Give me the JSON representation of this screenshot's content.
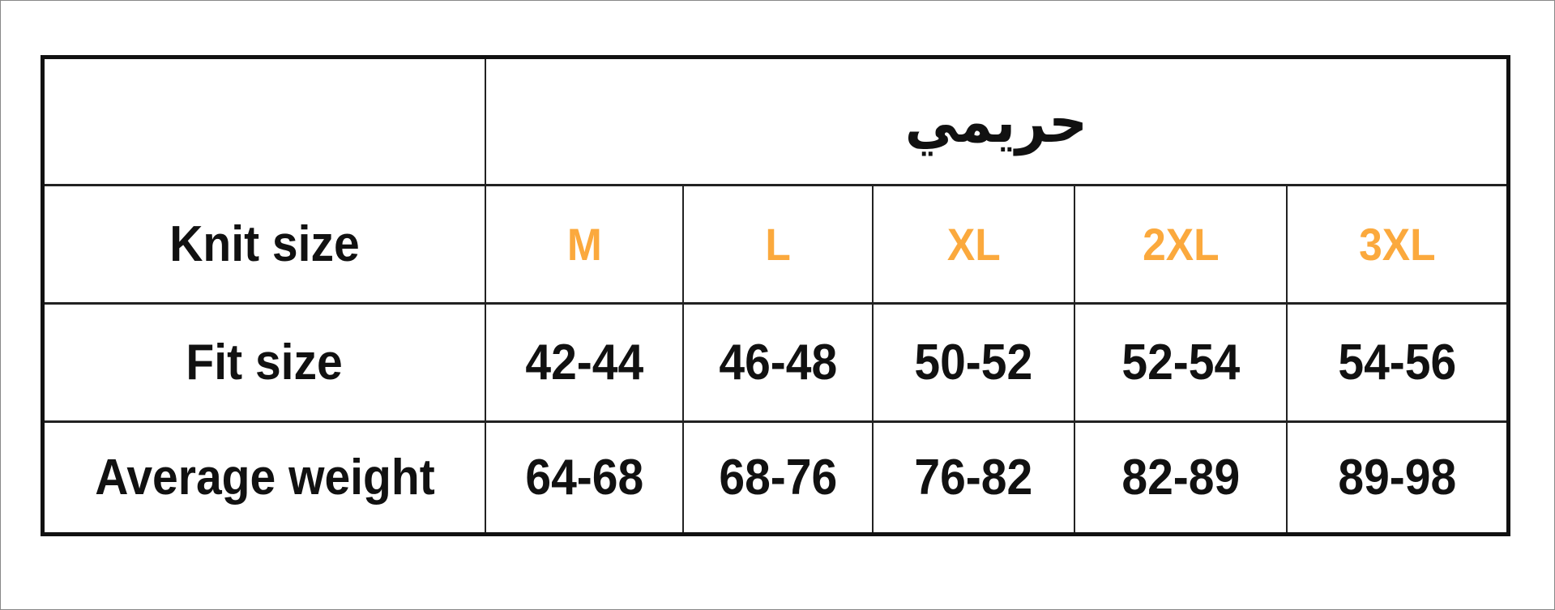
{
  "title": "حريمي",
  "accent_color": "#FBA93D",
  "rows": [
    {
      "label": "Knit size",
      "values": [
        "M",
        "L",
        "XL",
        "2XL",
        "3XL"
      ]
    },
    {
      "label": "Fit size",
      "values": [
        "42-44",
        "46-48",
        "50-52",
        "52-54",
        "54-56"
      ]
    },
    {
      "label": "Average weight",
      "values": [
        "64-68",
        "68-76",
        "76-82",
        "82-89",
        "89-98"
      ]
    }
  ]
}
